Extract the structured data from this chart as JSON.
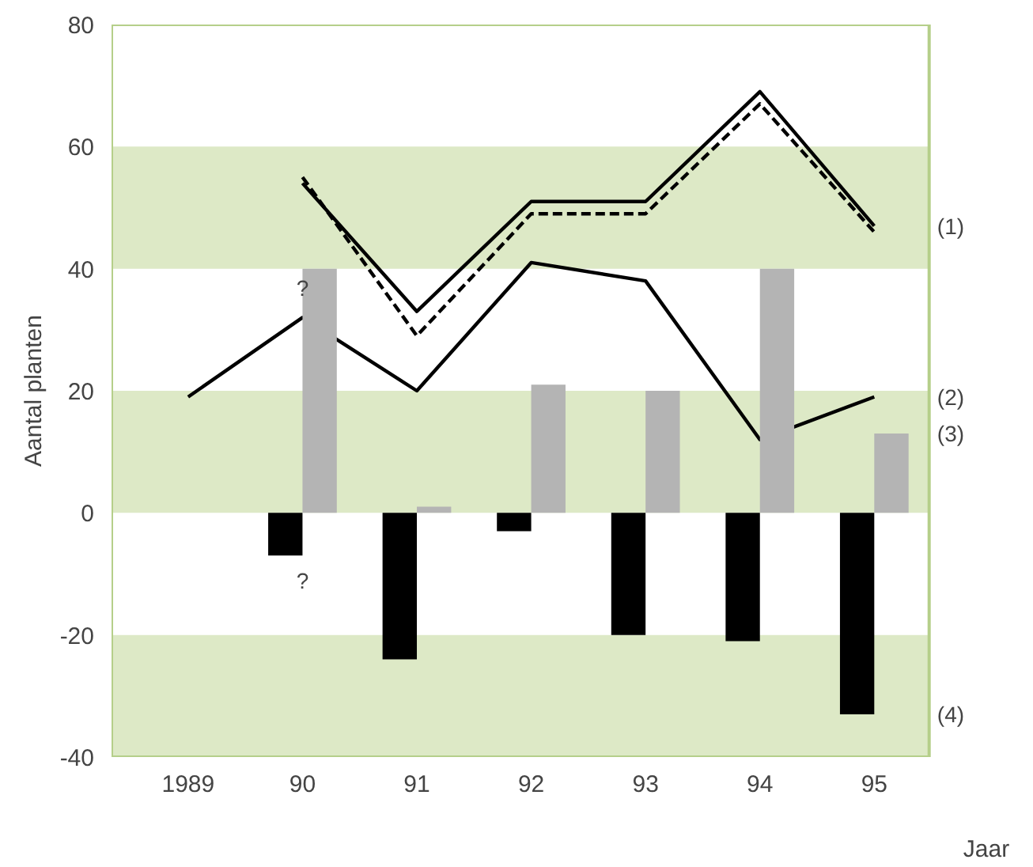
{
  "chart_data": {
    "type": "line",
    "xlabel": "Jaar",
    "ylabel": "Aantal planten",
    "categories": [
      "1989",
      "90",
      "91",
      "92",
      "93",
      "94",
      "95"
    ],
    "ylim": [
      -40,
      80
    ],
    "yticks": [
      -40,
      -20,
      0,
      20,
      40,
      60,
      80
    ],
    "grid": false,
    "series": [
      {
        "name": "(1)",
        "line_style": "solid",
        "color": "#000000",
        "values": [
          null,
          54,
          33,
          51,
          51,
          69,
          47
        ]
      },
      {
        "line_style": "dashed",
        "color": "#000000",
        "values": [
          null,
          55,
          29,
          49,
          49,
          67,
          46
        ]
      },
      {
        "name": "(2)",
        "line_style": "solid",
        "color": "#000000",
        "values": [
          19,
          32,
          20,
          41,
          38,
          12,
          19
        ]
      },
      {
        "name": "(4)",
        "type": "bar",
        "color": "#000000",
        "values": [
          null,
          -7,
          -24,
          -3,
          -20,
          -21,
          -33
        ]
      },
      {
        "name": "(3)",
        "type": "bar",
        "color": "#b4b4b4",
        "values": [
          null,
          40,
          1,
          21,
          20,
          40,
          13
        ]
      }
    ],
    "bands": [
      {
        "axis": "y",
        "from": 40,
        "to": 60,
        "color": "#dde9c6"
      },
      {
        "axis": "y",
        "from": 0,
        "to": 20,
        "color": "#dde9c6"
      },
      {
        "axis": "y",
        "from": -40,
        "to": -20,
        "color": "#dde9c6"
      }
    ],
    "annotations": [
      {
        "text": "?",
        "x": "90",
        "y": 40
      },
      {
        "text": "?",
        "x": "90",
        "y": -7
      }
    ]
  }
}
